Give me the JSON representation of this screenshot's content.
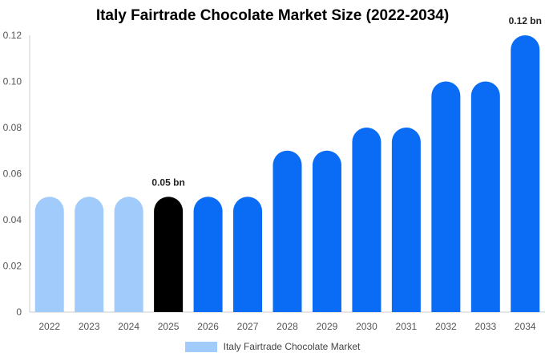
{
  "chart_data": {
    "type": "bar",
    "title": "Italy Fairtrade Chocolate Market Size (2022-2034)",
    "categories": [
      "2022",
      "2023",
      "2024",
      "2025",
      "2026",
      "2027",
      "2028",
      "2029",
      "2030",
      "2031",
      "2032",
      "2033",
      "2034"
    ],
    "series": [
      {
        "name": "Italy Fairtrade Chocolate Market",
        "values": [
          0.05,
          0.05,
          0.05,
          0.05,
          0.05,
          0.05,
          0.07,
          0.07,
          0.08,
          0.08,
          0.1,
          0.1,
          0.12
        ]
      }
    ],
    "ylim": [
      0,
      0.12
    ],
    "yticks": [
      "0",
      "0.02",
      "0.04",
      "0.06",
      "0.08",
      "0.10",
      "0.12"
    ],
    "data_labels": [
      {
        "category": "2025",
        "text": "0.05 bn"
      },
      {
        "category": "2034",
        "text": "0.12 bn"
      }
    ],
    "bar_colors": [
      "#a0cbfb",
      "#a0cbfb",
      "#a0cbfb",
      "#000000",
      "#0a6cf5",
      "#0a6cf5",
      "#0a6cf5",
      "#0a6cf5",
      "#0a6cf5",
      "#0a6cf5",
      "#0a6cf5",
      "#0a6cf5",
      "#0a6cf5"
    ],
    "legend_color": "#a0cbfb",
    "legend_position": "bottom",
    "grid": false
  }
}
